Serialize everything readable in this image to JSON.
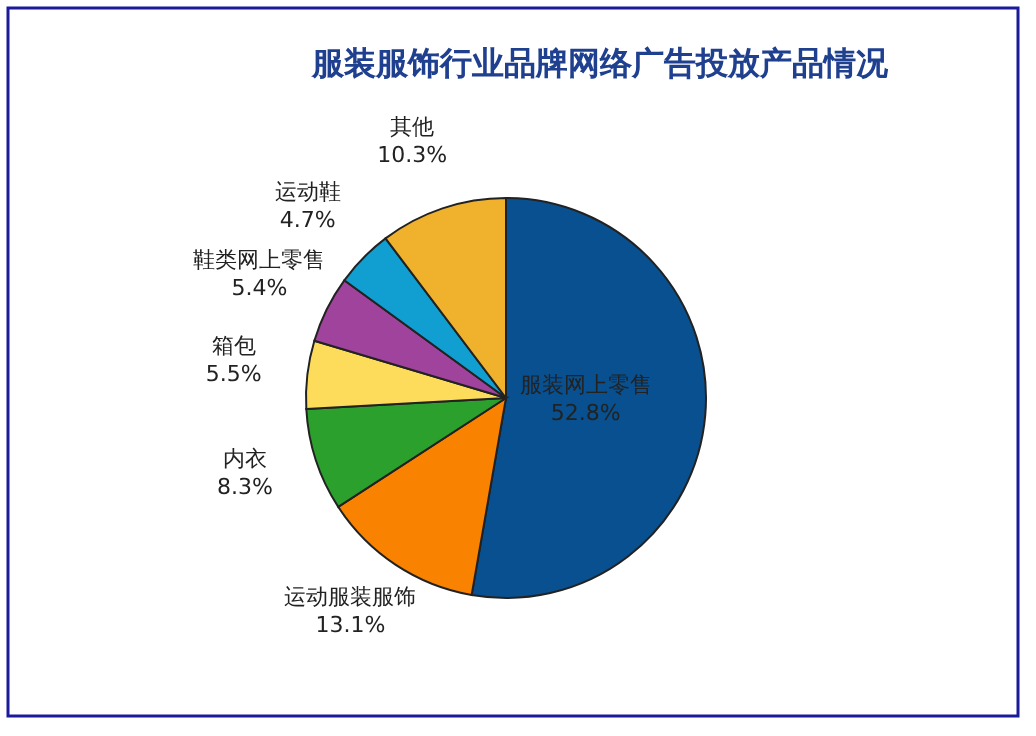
{
  "chart_data": {
    "type": "pie",
    "title": "服装服饰行业品牌网络广告投放产品情况",
    "categories": [
      "服装网上零售",
      "运动服装服饰",
      "内衣",
      "箱包",
      "鞋类网上零售",
      "运动鞋",
      "其他"
    ],
    "values": [
      52.8,
      13.1,
      8.3,
      5.5,
      5.4,
      4.7,
      10.3
    ],
    "value_labels": [
      "52.8%",
      "13.1%",
      "8.3%",
      "5.5%",
      "5.4%",
      "4.7%",
      "10.3%"
    ],
    "colors": [
      "#08508f",
      "#f98200",
      "#2ca02c",
      "#fddc5c",
      "#a0439c",
      "#109fd0",
      "#f0b22c"
    ],
    "legend": false
  }
}
